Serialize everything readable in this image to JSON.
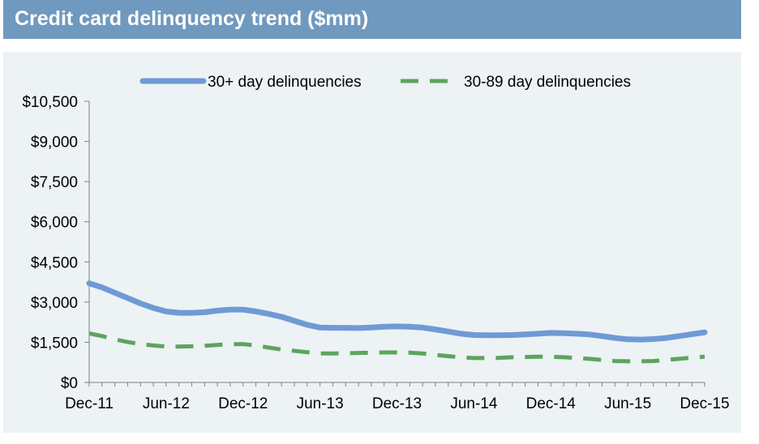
{
  "title": "Credit card delinquency trend ($mm)",
  "colors": {
    "title_bar": "#7099bf",
    "panel": "#edf2f5",
    "series_30_plus": "#6f9ad5",
    "series_30_89": "#5ca55c"
  },
  "chart_data": {
    "type": "line",
    "title": "Credit card delinquency trend ($mm)",
    "xlabel": "",
    "ylabel": "",
    "x_tick_labels": [
      "Dec-11",
      "Jun-12",
      "Dec-12",
      "Jun-13",
      "Dec-13",
      "Jun-14",
      "Dec-14",
      "Jun-15",
      "Dec-15"
    ],
    "y_tick_labels": [
      "$0",
      "$1,500",
      "$3,000",
      "$4,500",
      "$6,000",
      "$7,500",
      "$9,000",
      "$10,500"
    ],
    "ylim": [
      0,
      10500
    ],
    "y_ticks": [
      0,
      1500,
      3000,
      4500,
      6000,
      7500,
      9000,
      10500
    ],
    "grid": false,
    "legend_position": "top",
    "x": [
      "Dec-11",
      "Jan-12",
      "Feb-12",
      "Mar-12",
      "Apr-12",
      "May-12",
      "Jun-12",
      "Jul-12",
      "Aug-12",
      "Sep-12",
      "Oct-12",
      "Nov-12",
      "Dec-12",
      "Jan-13",
      "Feb-13",
      "Mar-13",
      "Apr-13",
      "May-13",
      "Jun-13",
      "Jul-13",
      "Aug-13",
      "Sep-13",
      "Oct-13",
      "Nov-13",
      "Dec-13",
      "Jan-14",
      "Feb-14",
      "Mar-14",
      "Apr-14",
      "May-14",
      "Jun-14",
      "Jul-14",
      "Aug-14",
      "Sep-14",
      "Oct-14",
      "Nov-14",
      "Dec-14",
      "Jan-15",
      "Feb-15",
      "Mar-15",
      "Apr-15",
      "May-15",
      "Jun-15",
      "Jul-15",
      "Aug-15",
      "Sep-15",
      "Oct-15",
      "Nov-15",
      "Dec-15"
    ],
    "series": [
      {
        "name": "30+ day delinquencies",
        "style": "solid",
        "color": "#6f9ad5",
        "values": [
          3700,
          3550,
          3350,
          3150,
          2950,
          2780,
          2650,
          2600,
          2600,
          2620,
          2680,
          2720,
          2720,
          2650,
          2560,
          2450,
          2300,
          2150,
          2050,
          2040,
          2040,
          2030,
          2050,
          2080,
          2090,
          2080,
          2050,
          1980,
          1900,
          1820,
          1770,
          1760,
          1760,
          1770,
          1790,
          1820,
          1850,
          1840,
          1820,
          1790,
          1730,
          1660,
          1610,
          1600,
          1620,
          1660,
          1730,
          1800,
          1870
        ]
      },
      {
        "name": "30-89 day delinquencies",
        "style": "dashed",
        "color": "#5ca55c",
        "values": [
          1830,
          1730,
          1610,
          1510,
          1430,
          1380,
          1340,
          1340,
          1350,
          1370,
          1400,
          1430,
          1430,
          1380,
          1300,
          1230,
          1180,
          1130,
          1080,
          1080,
          1090,
          1100,
          1110,
          1120,
          1120,
          1110,
          1080,
          1030,
          980,
          940,
          910,
          910,
          920,
          940,
          950,
          960,
          960,
          940,
          910,
          880,
          840,
          800,
          790,
          790,
          800,
          840,
          880,
          930,
          960
        ]
      }
    ]
  }
}
